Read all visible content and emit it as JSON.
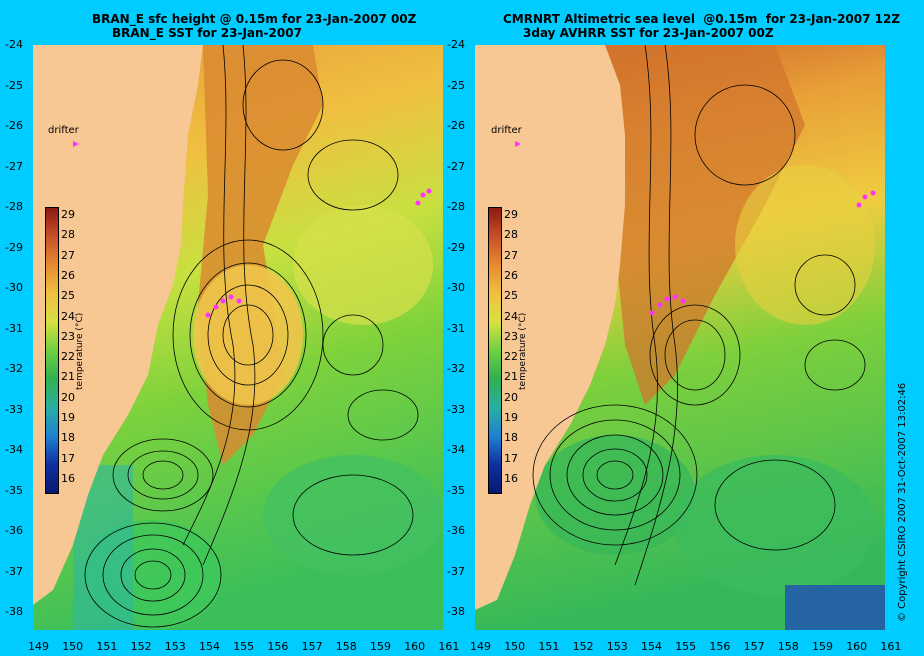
{
  "left_panel": {
    "title_line1": "BRAN_E sfc height @ 0.15m for 23-Jan-2007 00Z",
    "title_line2": "BRAN_E SST for 23-Jan-2007"
  },
  "right_panel": {
    "title_line1": "CMRNRT Altimetric sea level  @0.15m  for 23-Jan-2007 12Z",
    "title_line2": "3day AVHRR SST for 23-Jan-2007 00Z"
  },
  "drifter_label": "drifter",
  "colorbar": {
    "label": "temperature (°C)",
    "ticks": [
      "29",
      "28",
      "27",
      "26",
      "25",
      "24",
      "23",
      "22",
      "21",
      "20",
      "19",
      "18",
      "17",
      "16"
    ]
  },
  "y_axis_ticks": [
    "-24",
    "-25",
    "-26",
    "-27",
    "-28",
    "-29",
    "-30",
    "-31",
    "-32",
    "-33",
    "-34",
    "-35",
    "-36",
    "-37",
    "-38"
  ],
  "x_axis_ticks": [
    "149",
    "150",
    "151",
    "152",
    "153",
    "154",
    "155",
    "156",
    "157",
    "158",
    "159",
    "160",
    "161"
  ],
  "copyright": "© Copyright CSIRO 2007    31-Oct-2007 13:02:46",
  "colors": {
    "background": "#00ccff",
    "land": "#f7c794",
    "drifter": "#ff33ff"
  }
}
